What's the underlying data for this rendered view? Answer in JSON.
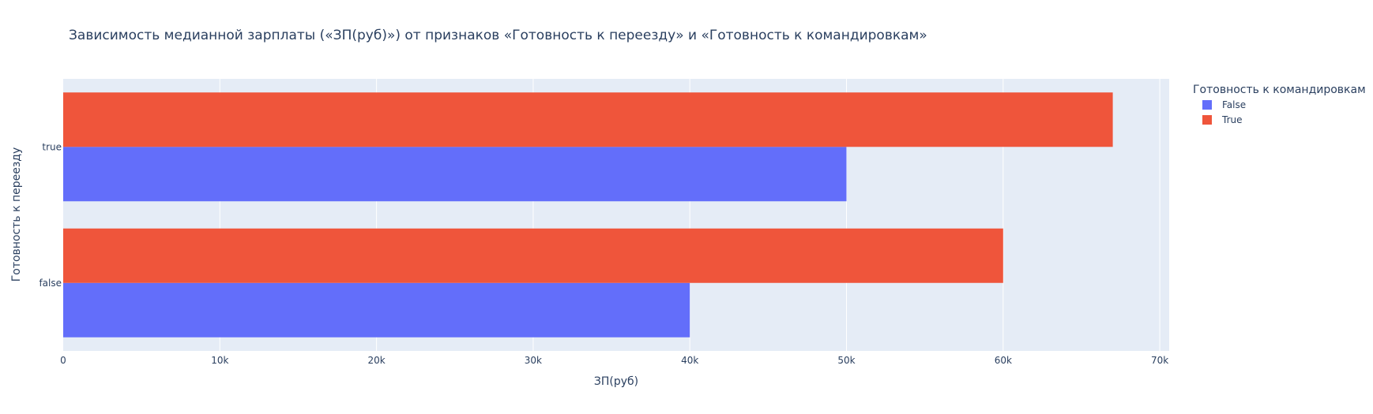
{
  "chart_data": {
    "type": "bar",
    "orientation": "horizontal",
    "barmode": "group",
    "title": "Зависимость медианной зарплаты («ЗП(руб)») от признаков «Готовность к переезду» и «Готовность к командировкам»",
    "xlabel": "ЗП(руб)",
    "ylabel": "Готовность к переезду",
    "categories": [
      "false",
      "true"
    ],
    "xlim": [
      0,
      70600
    ],
    "x_ticks": [
      0,
      10000,
      20000,
      30000,
      40000,
      50000,
      60000,
      70000
    ],
    "x_tick_labels": [
      "0",
      "10k",
      "20k",
      "30k",
      "40k",
      "50k",
      "60k",
      "70k"
    ],
    "grid": true,
    "legend": {
      "title": "Готовность к командировкам",
      "placement": "top-right-outside"
    },
    "series": [
      {
        "name": "False",
        "color": "#636efa",
        "values": [
          40000,
          50000
        ]
      },
      {
        "name": "True",
        "color": "#ef553b",
        "values": [
          60000,
          67000
        ]
      }
    ]
  }
}
